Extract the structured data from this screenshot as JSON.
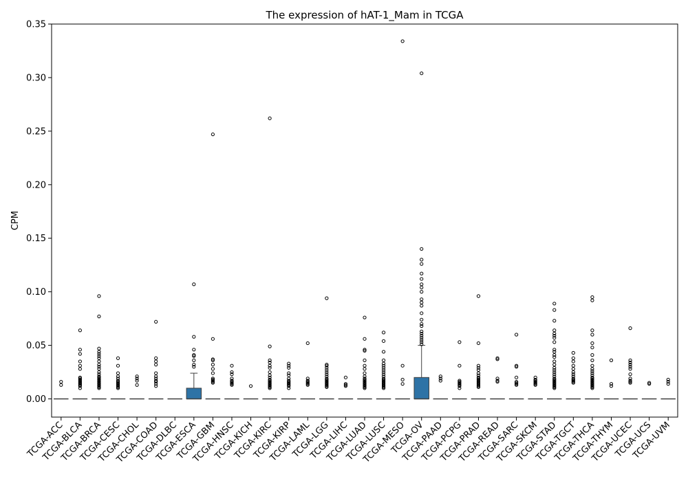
{
  "chart_data": {
    "type": "box",
    "title": "The expression of hAT-1_Mam in TCGA",
    "ylabel": "CPM",
    "xlabel": "",
    "ylim": [
      -0.017,
      0.35
    ],
    "yticks": [
      0.0,
      0.05,
      0.1,
      0.15,
      0.2,
      0.25,
      0.3,
      0.35
    ],
    "ytick_labels": [
      "0.00",
      "0.05",
      "0.10",
      "0.15",
      "0.20",
      "0.25",
      "0.30",
      "0.35"
    ],
    "box_color": "#2e73a6",
    "grid": false,
    "categories": [
      "TCGA-ACC",
      "TCGA-BLCA",
      "TCGA-BRCA",
      "TCGA-CESC",
      "TCGA-CHOL",
      "TCGA-COAD",
      "TCGA-DLBC",
      "TCGA-ESCA",
      "TCGA-GBM",
      "TCGA-HNSC",
      "TCGA-KICH",
      "TCGA-KIRC",
      "TCGA-KIRP",
      "TCGA-LAML",
      "TCGA-LGG",
      "TCGA-LIHC",
      "TCGA-LUAD",
      "TCGA-LUSC",
      "TCGA-MESO",
      "TCGA-OV",
      "TCGA-PAAD",
      "TCGA-PCPG",
      "TCGA-PRAD",
      "TCGA-READ",
      "TCGA-SARC",
      "TCGA-SKCM",
      "TCGA-STAD",
      "TCGA-TGCT",
      "TCGA-THCA",
      "TCGA-THYM",
      "TCGA-UCEC",
      "TCGA-UCS",
      "TCGA-UVM"
    ],
    "boxes": [
      {
        "q1": 0,
        "median": 0,
        "q3": 0,
        "whisker_low": 0,
        "whisker_high": 0,
        "outliers": [
          0.016,
          0.013
        ]
      },
      {
        "q1": 0,
        "median": 0,
        "q3": 0,
        "whisker_low": 0,
        "whisker_high": 0,
        "outliers": [
          0.064,
          0.046,
          0.042,
          0.035,
          0.031,
          0.028,
          0.02,
          0.019,
          0.018,
          0.017,
          0.016,
          0.015,
          0.014,
          0.013,
          0.012,
          0.01
        ]
      },
      {
        "q1": 0,
        "median": 0,
        "q3": 0,
        "whisker_low": 0,
        "whisker_high": 0,
        "outliers": [
          0.096,
          0.077,
          0.047,
          0.044,
          0.042,
          0.04,
          0.038,
          0.035,
          0.032,
          0.03,
          0.028,
          0.025,
          0.023,
          0.021,
          0.02,
          0.019,
          0.018,
          0.017,
          0.016,
          0.015,
          0.014,
          0.013,
          0.012,
          0.011,
          0.01
        ]
      },
      {
        "q1": 0,
        "median": 0,
        "q3": 0,
        "whisker_low": 0,
        "whisker_high": 0,
        "outliers": [
          0.038,
          0.031,
          0.024,
          0.021,
          0.019,
          0.017,
          0.016,
          0.015,
          0.014,
          0.013,
          0.012,
          0.011,
          0.01
        ]
      },
      {
        "q1": 0,
        "median": 0,
        "q3": 0,
        "whisker_low": 0,
        "whisker_high": 0,
        "outliers": [
          0.021,
          0.019,
          0.017,
          0.013
        ]
      },
      {
        "q1": 0,
        "median": 0,
        "q3": 0,
        "whisker_low": 0,
        "whisker_high": 0,
        "outliers": [
          0.072,
          0.038,
          0.035,
          0.032,
          0.024,
          0.021,
          0.019,
          0.017,
          0.016,
          0.014,
          0.012
        ]
      },
      {
        "q1": 0,
        "median": 0,
        "q3": 0,
        "whisker_low": 0,
        "whisker_high": 0,
        "outliers": []
      },
      {
        "q1": 0,
        "median": 0,
        "q3": 0.01,
        "whisker_low": 0,
        "whisker_high": 0.024,
        "outliers": [
          0.107,
          0.058,
          0.046,
          0.041,
          0.04,
          0.036,
          0.032,
          0.03
        ]
      },
      {
        "q1": 0,
        "median": 0,
        "q3": 0,
        "whisker_low": 0,
        "whisker_high": 0,
        "outliers": [
          0.247,
          0.056,
          0.037,
          0.036,
          0.032,
          0.028,
          0.024,
          0.019,
          0.018,
          0.017,
          0.016,
          0.015
        ]
      },
      {
        "q1": 0,
        "median": 0,
        "q3": 0,
        "whisker_low": 0,
        "whisker_high": 0,
        "outliers": [
          0.031,
          0.025,
          0.023,
          0.019,
          0.017,
          0.016,
          0.015,
          0.014,
          0.013
        ]
      },
      {
        "q1": 0,
        "median": 0,
        "q3": 0,
        "whisker_low": 0,
        "whisker_high": 0,
        "outliers": [
          0.012
        ]
      },
      {
        "q1": 0,
        "median": 0,
        "q3": 0,
        "whisker_low": 0,
        "whisker_high": 0,
        "outliers": [
          0.262,
          0.049,
          0.036,
          0.034,
          0.031,
          0.029,
          0.025,
          0.022,
          0.02,
          0.018,
          0.017,
          0.016,
          0.015,
          0.014,
          0.013,
          0.012,
          0.011,
          0.01
        ]
      },
      {
        "q1": 0,
        "median": 0,
        "q3": 0,
        "whisker_low": 0,
        "whisker_high": 0,
        "outliers": [
          0.033,
          0.031,
          0.029,
          0.024,
          0.022,
          0.019,
          0.017,
          0.016,
          0.015,
          0.014,
          0.013,
          0.012,
          0.01
        ]
      },
      {
        "q1": 0,
        "median": 0,
        "q3": 0,
        "whisker_low": 0,
        "whisker_high": 0,
        "outliers": [
          0.052,
          0.019,
          0.017,
          0.016,
          0.015,
          0.014,
          0.013
        ]
      },
      {
        "q1": 0,
        "median": 0,
        "q3": 0,
        "whisker_low": 0,
        "whisker_high": 0,
        "outliers": [
          0.094,
          0.032,
          0.031,
          0.029,
          0.027,
          0.025,
          0.023,
          0.021,
          0.019,
          0.018,
          0.017,
          0.016,
          0.015,
          0.014,
          0.013,
          0.012,
          0.011
        ]
      },
      {
        "q1": 0,
        "median": 0,
        "q3": 0,
        "whisker_low": 0,
        "whisker_high": 0,
        "outliers": [
          0.02,
          0.014,
          0.013,
          0.012
        ]
      },
      {
        "q1": 0,
        "median": 0,
        "q3": 0,
        "whisker_low": 0,
        "whisker_high": 0,
        "outliers": [
          0.076,
          0.056,
          0.046,
          0.045,
          0.036,
          0.031,
          0.028,
          0.024,
          0.021,
          0.019,
          0.018,
          0.017,
          0.016,
          0.015,
          0.014,
          0.013,
          0.012,
          0.011,
          0.01
        ]
      },
      {
        "q1": 0,
        "median": 0,
        "q3": 0,
        "whisker_low": 0,
        "whisker_high": 0,
        "outliers": [
          0.062,
          0.054,
          0.044,
          0.036,
          0.033,
          0.031,
          0.029,
          0.027,
          0.025,
          0.023,
          0.021,
          0.019,
          0.018,
          0.017,
          0.016,
          0.015,
          0.014,
          0.013,
          0.012,
          0.011,
          0.01
        ]
      },
      {
        "q1": 0,
        "median": 0,
        "q3": 0,
        "whisker_low": 0,
        "whisker_high": 0,
        "outliers": [
          0.334,
          0.031,
          0.018,
          0.014
        ]
      },
      {
        "q1": 0,
        "median": 0,
        "q3": 0.02,
        "whisker_low": 0,
        "whisker_high": 0.05,
        "outliers": [
          0.304,
          0.14,
          0.13,
          0.126,
          0.117,
          0.112,
          0.107,
          0.104,
          0.1,
          0.093,
          0.09,
          0.087,
          0.08,
          0.074,
          0.07,
          0.068,
          0.063,
          0.061,
          0.059,
          0.057,
          0.055,
          0.053,
          0.051
        ]
      },
      {
        "q1": 0,
        "median": 0,
        "q3": 0,
        "whisker_low": 0,
        "whisker_high": 0,
        "outliers": [
          0.021,
          0.019,
          0.017
        ]
      },
      {
        "q1": 0,
        "median": 0,
        "q3": 0,
        "whisker_low": 0,
        "whisker_high": 0,
        "outliers": [
          0.053,
          0.031,
          0.017,
          0.016,
          0.015,
          0.014,
          0.013,
          0.012,
          0.01
        ]
      },
      {
        "q1": 0,
        "median": 0,
        "q3": 0,
        "whisker_low": 0,
        "whisker_high": 0,
        "outliers": [
          0.096,
          0.052,
          0.031,
          0.029,
          0.027,
          0.024,
          0.022,
          0.02,
          0.019,
          0.018,
          0.017,
          0.016,
          0.015,
          0.014,
          0.013,
          0.012,
          0.011
        ]
      },
      {
        "q1": 0,
        "median": 0,
        "q3": 0,
        "whisker_low": 0,
        "whisker_high": 0,
        "outliers": [
          0.038,
          0.037,
          0.019,
          0.017,
          0.016
        ]
      },
      {
        "q1": 0,
        "median": 0,
        "q3": 0,
        "whisker_low": 0,
        "whisker_high": 0,
        "outliers": [
          0.06,
          0.031,
          0.03,
          0.02,
          0.016,
          0.015,
          0.014,
          0.013
        ]
      },
      {
        "q1": 0,
        "median": 0,
        "q3": 0,
        "whisker_low": 0,
        "whisker_high": 0,
        "outliers": [
          0.02,
          0.018,
          0.017,
          0.016,
          0.015,
          0.014,
          0.013
        ]
      },
      {
        "q1": 0,
        "median": 0,
        "q3": 0,
        "whisker_low": 0,
        "whisker_high": 0,
        "outliers": [
          0.089,
          0.083,
          0.073,
          0.064,
          0.061,
          0.059,
          0.057,
          0.053,
          0.046,
          0.044,
          0.041,
          0.039,
          0.035,
          0.032,
          0.029,
          0.027,
          0.025,
          0.023,
          0.021,
          0.019,
          0.018,
          0.017,
          0.016,
          0.015,
          0.014,
          0.013,
          0.012,
          0.011,
          0.01
        ]
      },
      {
        "q1": 0,
        "median": 0,
        "q3": 0,
        "whisker_low": 0,
        "whisker_high": 0,
        "outliers": [
          0.043,
          0.038,
          0.035,
          0.031,
          0.028,
          0.025,
          0.023,
          0.021,
          0.019,
          0.018,
          0.017,
          0.016,
          0.015
        ]
      },
      {
        "q1": 0,
        "median": 0,
        "q3": 0,
        "whisker_low": 0,
        "whisker_high": 0,
        "outliers": [
          0.095,
          0.092,
          0.064,
          0.06,
          0.052,
          0.048,
          0.041,
          0.036,
          0.031,
          0.028,
          0.026,
          0.024,
          0.022,
          0.02,
          0.019,
          0.018,
          0.017,
          0.016,
          0.015,
          0.014,
          0.013,
          0.012,
          0.011,
          0.01
        ]
      },
      {
        "q1": 0,
        "median": 0,
        "q3": 0,
        "whisker_low": 0,
        "whisker_high": 0,
        "outliers": [
          0.036,
          0.014,
          0.012
        ]
      },
      {
        "q1": 0,
        "median": 0,
        "q3": 0,
        "whisker_low": 0,
        "whisker_high": 0,
        "outliers": [
          0.066,
          0.036,
          0.034,
          0.032,
          0.03,
          0.028,
          0.023,
          0.019,
          0.017,
          0.016,
          0.015
        ]
      },
      {
        "q1": 0,
        "median": 0,
        "q3": 0,
        "whisker_low": 0,
        "whisker_high": 0,
        "outliers": [
          0.015,
          0.014
        ]
      },
      {
        "q1": 0,
        "median": 0,
        "q3": 0,
        "whisker_low": 0,
        "whisker_high": 0,
        "outliers": [
          0.018,
          0.016,
          0.014
        ]
      }
    ]
  }
}
